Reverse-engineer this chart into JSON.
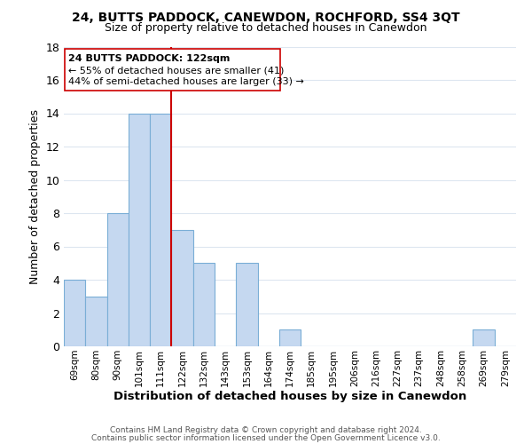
{
  "title": "24, BUTTS PADDOCK, CANEWDON, ROCHFORD, SS4 3QT",
  "subtitle": "Size of property relative to detached houses in Canewdon",
  "xlabel": "Distribution of detached houses by size in Canewdon",
  "ylabel": "Number of detached properties",
  "bar_labels": [
    "69sqm",
    "80sqm",
    "90sqm",
    "101sqm",
    "111sqm",
    "122sqm",
    "132sqm",
    "143sqm",
    "153sqm",
    "164sqm",
    "174sqm",
    "185sqm",
    "195sqm",
    "206sqm",
    "216sqm",
    "227sqm",
    "237sqm",
    "248sqm",
    "258sqm",
    "269sqm",
    "279sqm"
  ],
  "bar_values": [
    4,
    3,
    8,
    14,
    14,
    7,
    5,
    0,
    5,
    0,
    1,
    0,
    0,
    0,
    0,
    0,
    0,
    0,
    0,
    1,
    0
  ],
  "bar_color": "#c5d8f0",
  "bar_edge_color": "#7aaed6",
  "highlight_line_color": "#cc0000",
  "highlight_bar_index": 5,
  "annotation_title": "24 BUTTS PADDOCK: 122sqm",
  "annotation_line1": "← 55% of detached houses are smaller (41)",
  "annotation_line2": "44% of semi-detached houses are larger (33) →",
  "annotation_box_color": "#ffffff",
  "annotation_box_edge_color": "#cc0000",
  "ylim": [
    0,
    18
  ],
  "yticks": [
    0,
    2,
    4,
    6,
    8,
    10,
    12,
    14,
    16,
    18
  ],
  "footer1": "Contains HM Land Registry data © Crown copyright and database right 2024.",
  "footer2": "Contains public sector information licensed under the Open Government Licence v3.0.",
  "background_color": "#ffffff",
  "grid_color": "#dde6f0"
}
